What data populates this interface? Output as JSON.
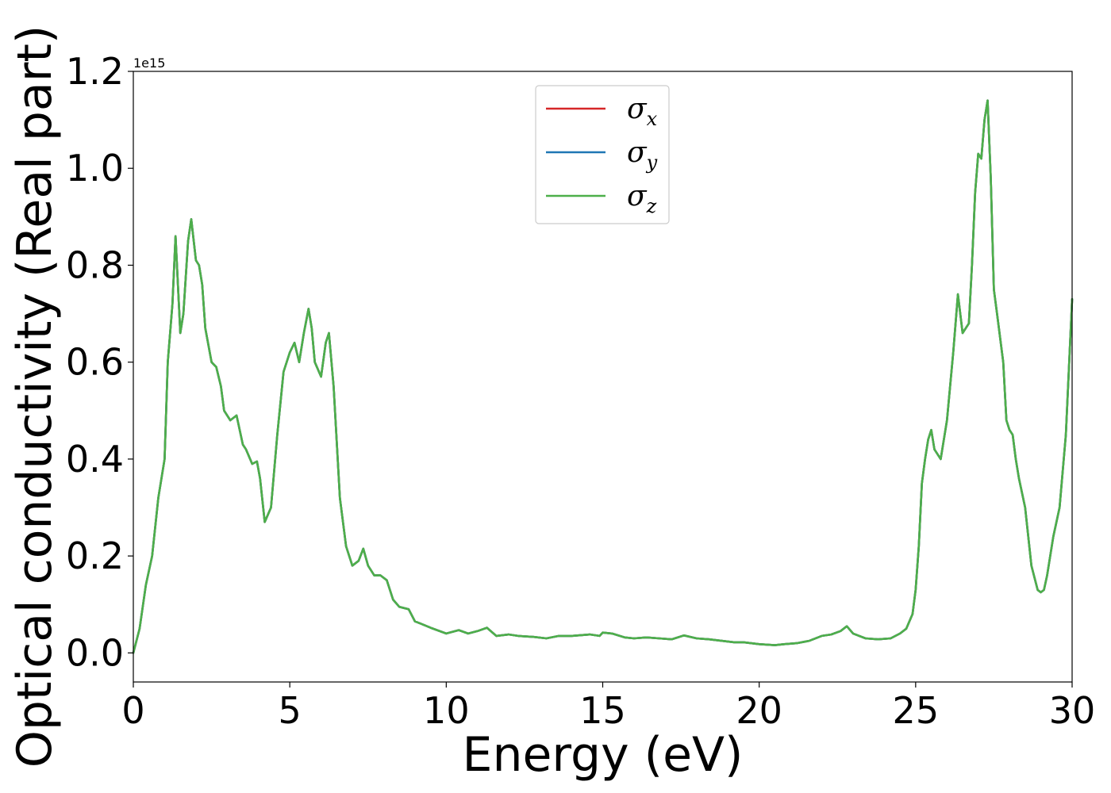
{
  "chart_data": {
    "type": "line",
    "xlabel": "Energy (eV)",
    "ylabel": "Optical conductivity (Real part)",
    "y_offset_text": "1e15",
    "xlim": [
      0,
      30
    ],
    "ylim": [
      -0.06,
      1.2
    ],
    "x_ticks": [
      0,
      5,
      10,
      15,
      20,
      25,
      30
    ],
    "x_tick_labels": [
      "0",
      "5",
      "10",
      "15",
      "20",
      "25",
      "30"
    ],
    "y_ticks": [
      0.0,
      0.2,
      0.4,
      0.6,
      0.8,
      1.0,
      1.2
    ],
    "y_tick_labels": [
      "0.0",
      "0.2",
      "0.4",
      "0.6",
      "0.8",
      "1.0",
      "1.2"
    ],
    "legend_position": "upper center",
    "grid": false,
    "series": [
      {
        "name_base": "σ",
        "name_sub": "x",
        "color": "#d62728"
      },
      {
        "name_base": "σ",
        "name_sub": "y",
        "color": "#1f77b4"
      },
      {
        "name_base": "σ",
        "name_sub": "z",
        "color": "#4daf4a"
      }
    ],
    "x": [
      0.0,
      0.2,
      0.4,
      0.6,
      0.8,
      1.0,
      1.1,
      1.25,
      1.35,
      1.5,
      1.6,
      1.75,
      1.85,
      2.0,
      2.1,
      2.2,
      2.3,
      2.5,
      2.65,
      2.8,
      2.9,
      3.1,
      3.3,
      3.5,
      3.6,
      3.8,
      3.95,
      4.05,
      4.2,
      4.4,
      4.6,
      4.8,
      5.0,
      5.15,
      5.3,
      5.45,
      5.6,
      5.7,
      5.8,
      6.0,
      6.15,
      6.25,
      6.4,
      6.6,
      6.8,
      7.0,
      7.2,
      7.35,
      7.5,
      7.7,
      7.9,
      8.1,
      8.3,
      8.5,
      8.8,
      9.0,
      9.2,
      9.5,
      10.0,
      10.4,
      10.7,
      11.0,
      11.3,
      11.6,
      12.0,
      12.3,
      12.8,
      13.2,
      13.6,
      14.0,
      14.6,
      14.9,
      15.0,
      15.3,
      15.7,
      16.0,
      16.4,
      16.8,
      17.2,
      17.6,
      18.0,
      18.4,
      18.8,
      19.2,
      19.5,
      20.0,
      20.5,
      20.8,
      21.2,
      21.6,
      22.0,
      22.3,
      22.6,
      22.8,
      23.0,
      23.4,
      23.8,
      24.2,
      24.5,
      24.7,
      24.9,
      25.0,
      25.1,
      25.2,
      25.3,
      25.4,
      25.5,
      25.6,
      25.8,
      26.0,
      26.2,
      26.35,
      26.5,
      26.7,
      26.8,
      26.9,
      27.0,
      27.1,
      27.2,
      27.3,
      27.4,
      27.5,
      27.6,
      27.8,
      27.9,
      28.0,
      28.1,
      28.2,
      28.3,
      28.5,
      28.7,
      28.9,
      29.0,
      29.1,
      29.2,
      29.4,
      29.6,
      29.8,
      30.0
    ],
    "values": [
      0.0,
      0.05,
      0.14,
      0.2,
      0.32,
      0.4,
      0.6,
      0.72,
      0.86,
      0.66,
      0.7,
      0.85,
      0.895,
      0.81,
      0.8,
      0.76,
      0.67,
      0.6,
      0.59,
      0.55,
      0.5,
      0.48,
      0.49,
      0.43,
      0.42,
      0.39,
      0.395,
      0.36,
      0.27,
      0.3,
      0.45,
      0.58,
      0.62,
      0.64,
      0.6,
      0.66,
      0.71,
      0.67,
      0.6,
      0.57,
      0.64,
      0.66,
      0.55,
      0.32,
      0.22,
      0.18,
      0.19,
      0.215,
      0.18,
      0.16,
      0.16,
      0.15,
      0.11,
      0.095,
      0.09,
      0.065,
      0.06,
      0.052,
      0.04,
      0.047,
      0.04,
      0.045,
      0.052,
      0.035,
      0.038,
      0.035,
      0.033,
      0.03,
      0.035,
      0.035,
      0.038,
      0.035,
      0.042,
      0.04,
      0.032,
      0.03,
      0.032,
      0.03,
      0.028,
      0.036,
      0.03,
      0.028,
      0.025,
      0.022,
      0.022,
      0.018,
      0.016,
      0.018,
      0.02,
      0.025,
      0.035,
      0.038,
      0.045,
      0.055,
      0.04,
      0.03,
      0.028,
      0.03,
      0.04,
      0.05,
      0.08,
      0.13,
      0.22,
      0.35,
      0.4,
      0.44,
      0.46,
      0.42,
      0.4,
      0.48,
      0.62,
      0.74,
      0.66,
      0.68,
      0.8,
      0.95,
      1.03,
      1.02,
      1.1,
      1.14,
      0.98,
      0.75,
      0.7,
      0.6,
      0.48,
      0.46,
      0.45,
      0.4,
      0.36,
      0.3,
      0.18,
      0.13,
      0.125,
      0.13,
      0.16,
      0.24,
      0.3,
      0.45,
      0.73
    ]
  }
}
